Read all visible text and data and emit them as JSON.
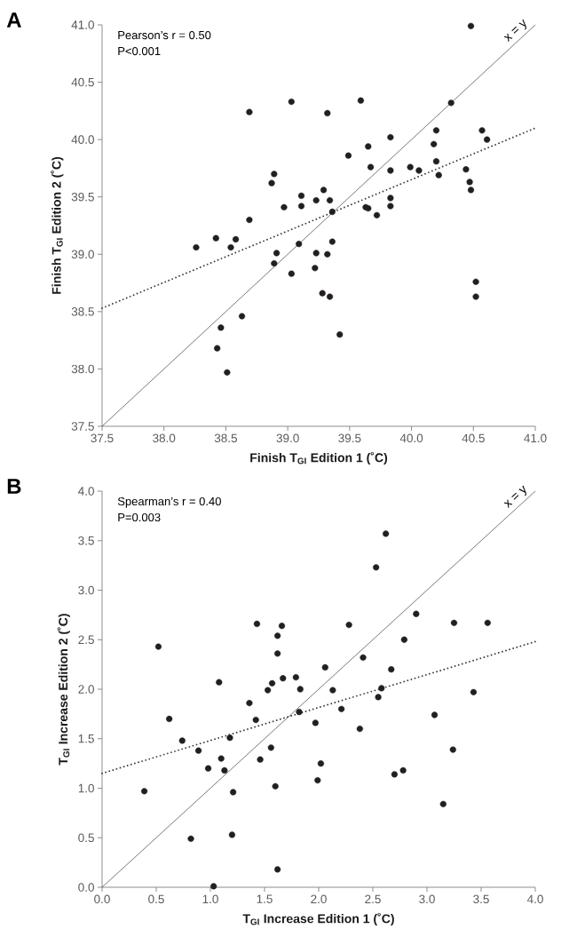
{
  "chart_data": [
    {
      "type": "scatter",
      "title": "A",
      "xlabel": "Finish T$_{GI}$ Edition 1 (˚C)",
      "ylabel": "Finish T$_{GI}$ Edition 2 (˚C)",
      "xlim": [
        37.5,
        41.0
      ],
      "ylim": [
        37.5,
        41.0
      ],
      "xticks": [
        {
          "value": 37.5,
          "label": "37.5"
        },
        {
          "value": 38.0,
          "label": "38.0"
        },
        {
          "value": 38.5,
          "label": "38.5"
        },
        {
          "value": 39.0,
          "label": "39.0"
        },
        {
          "value": 39.5,
          "label": "39.5"
        },
        {
          "value": 40.0,
          "label": "40.0"
        },
        {
          "value": 40.5,
          "label": "40.5"
        },
        {
          "value": 41.0,
          "label": "41.0"
        }
      ],
      "yticks": [
        {
          "value": 37.5,
          "label": "37.5"
        },
        {
          "value": 38.0,
          "label": "38.0"
        },
        {
          "value": 38.5,
          "label": "38.5"
        },
        {
          "value": 39.0,
          "label": "39.0"
        },
        {
          "value": 39.5,
          "label": "39.5"
        },
        {
          "value": 40.0,
          "label": "40.0"
        },
        {
          "value": 40.5,
          "label": "40.5"
        },
        {
          "value": 41.0,
          "label": "41.0"
        }
      ],
      "annotations": [
        "Pearson’s r = 0.50",
        "P<0.001"
      ],
      "series": [
        {
          "marker": "circle",
          "color": "#231f20",
          "x": [
            38.26,
            38.42,
            38.58,
            38.54,
            38.69,
            38.69,
            39.03,
            38.89,
            38.87,
            38.97,
            39.11,
            39.11,
            38.91,
            38.89,
            39.09,
            39.03,
            38.63,
            38.46,
            38.43,
            38.51,
            40.48,
            39.59,
            39.32,
            40.32,
            39.83,
            39.65,
            39.49,
            39.67,
            39.83,
            39.99,
            40.06,
            40.2,
            40.18,
            40.2,
            40.22,
            40.57,
            40.61,
            40.44,
            40.47,
            40.48,
            40.52,
            40.52,
            39.29,
            39.23,
            39.34,
            39.36,
            39.63,
            39.65,
            39.72,
            39.83,
            39.83,
            39.36,
            39.23,
            39.32,
            39.22,
            39.28,
            39.34,
            39.42
          ],
          "values": [
            39.06,
            39.14,
            39.13,
            39.06,
            40.24,
            39.3,
            40.33,
            39.7,
            39.62,
            39.41,
            39.51,
            39.42,
            39.01,
            38.92,
            39.09,
            38.83,
            38.46,
            38.36,
            38.18,
            37.97,
            40.99,
            40.34,
            40.23,
            40.32,
            40.02,
            39.94,
            39.86,
            39.76,
            39.73,
            39.76,
            39.73,
            40.08,
            39.96,
            39.81,
            39.69,
            40.08,
            40.0,
            39.74,
            39.63,
            39.56,
            38.76,
            38.63,
            39.56,
            39.47,
            39.47,
            39.37,
            39.41,
            39.4,
            39.34,
            39.49,
            39.42,
            39.11,
            39.01,
            39.0,
            38.88,
            38.66,
            38.63,
            38.3
          ]
        },
        {
          "type": "line",
          "marker": "none",
          "line_style": "dotted",
          "color": "#3a3a3a",
          "x": [
            37.5,
            41.0
          ],
          "values": [
            38.53,
            40.1
          ]
        },
        {
          "type": "line",
          "marker": "none",
          "name": "x = y",
          "line_style": "solid",
          "color": "#231f20",
          "x": [
            37.5,
            41.0
          ],
          "values": [
            37.5,
            41.0
          ]
        }
      ]
    },
    {
      "type": "scatter",
      "title": "B",
      "xlabel": "T$_{GI}$ Increase Edition 1 (˚C)",
      "ylabel": "T$_{GI}$ Increase Edition 2 (˚C)",
      "xlim": [
        0.0,
        4.0
      ],
      "ylim": [
        0.0,
        4.0
      ],
      "xticks": [
        {
          "value": 0.0,
          "label": "0.0"
        },
        {
          "value": 0.5,
          "label": "0.5"
        },
        {
          "value": 1.0,
          "label": "1.0"
        },
        {
          "value": 1.5,
          "label": "1.5"
        },
        {
          "value": 2.0,
          "label": "2.0"
        },
        {
          "value": 2.5,
          "label": "2.5"
        },
        {
          "value": 3.0,
          "label": "3.0"
        },
        {
          "value": 3.5,
          "label": "3.5"
        },
        {
          "value": 4.0,
          "label": "4.0"
        }
      ],
      "yticks": [
        {
          "value": 0.0,
          "label": "0.0"
        },
        {
          "value": 0.5,
          "label": "0.5"
        },
        {
          "value": 1.0,
          "label": "1.0"
        },
        {
          "value": 1.5,
          "label": "1.5"
        },
        {
          "value": 2.0,
          "label": "2.0"
        },
        {
          "value": 2.5,
          "label": "2.5"
        },
        {
          "value": 3.0,
          "label": "3.0"
        },
        {
          "value": 3.5,
          "label": "3.5"
        },
        {
          "value": 4.0,
          "label": "4.0"
        }
      ],
      "annotations": [
        "Spearman’s r = 0.40",
        "P=0.003"
      ],
      "series": [
        {
          "marker": "circle",
          "color": "#231f20",
          "x": [
            0.52,
            0.39,
            0.62,
            0.74,
            0.89,
            0.98,
            1.1,
            1.13,
            1.08,
            1.18,
            1.21,
            0.82,
            1.2,
            1.43,
            1.36,
            1.42,
            1.46,
            1.56,
            1.6,
            1.62,
            1.66,
            1.62,
            1.62,
            1.53,
            1.57,
            1.67,
            1.79,
            1.83,
            1.82,
            2.62,
            2.53,
            2.28,
            2.9,
            3.25,
            3.56,
            2.79,
            2.41,
            2.67,
            2.06,
            2.13,
            2.58,
            2.55,
            2.21,
            1.97,
            2.38,
            3.43,
            3.07,
            3.24,
            2.02,
            1.99,
            2.7,
            2.78,
            3.15,
            1.03
          ],
          "values": [
            2.43,
            0.97,
            1.7,
            1.48,
            1.38,
            1.2,
            1.3,
            1.18,
            2.07,
            1.51,
            0.96,
            0.49,
            0.53,
            2.66,
            1.86,
            1.69,
            1.29,
            1.41,
            1.02,
            0.18,
            2.64,
            2.54,
            2.36,
            1.99,
            2.06,
            2.11,
            2.12,
            2.0,
            1.77,
            3.57,
            3.23,
            2.65,
            2.76,
            2.67,
            2.67,
            2.5,
            2.32,
            2.2,
            2.22,
            1.99,
            2.01,
            1.92,
            1.8,
            1.66,
            1.6,
            1.97,
            1.74,
            1.39,
            1.25,
            1.08,
            1.14,
            1.18,
            0.84,
            0.01
          ]
        },
        {
          "type": "line",
          "marker": "none",
          "line_style": "dotted",
          "color": "#3a3a3a",
          "x": [
            0.0,
            4.0
          ],
          "values": [
            1.15,
            2.48
          ]
        },
        {
          "type": "line",
          "marker": "none",
          "name": "x = y",
          "line_style": "solid",
          "color": "#231f20",
          "x": [
            0.0,
            4.0
          ],
          "values": [
            0.0,
            4.0
          ]
        }
      ]
    }
  ]
}
